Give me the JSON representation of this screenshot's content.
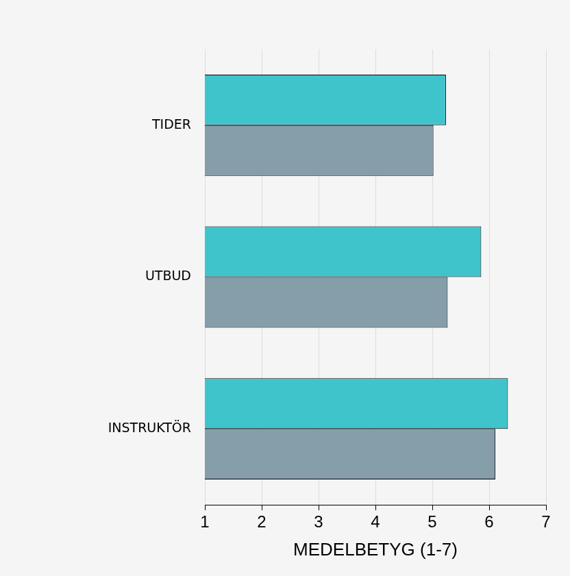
{
  "chart_data": {
    "type": "bar",
    "orientation": "horizontal",
    "categories": [
      "TIDER",
      "UTBUD",
      "INSTRUKTÖR"
    ],
    "series": [
      {
        "color": "#40c4cc",
        "values": [
          5.24,
          5.86,
          6.33
        ]
      },
      {
        "color": "#869daa",
        "values": [
          5.02,
          5.27,
          6.11
        ]
      }
    ],
    "x_label": "MEDELBETYG (1-7)",
    "xlim": [
      1,
      7
    ],
    "xticks": [
      1,
      2,
      3,
      4,
      5,
      6,
      7
    ],
    "grid": true
  }
}
